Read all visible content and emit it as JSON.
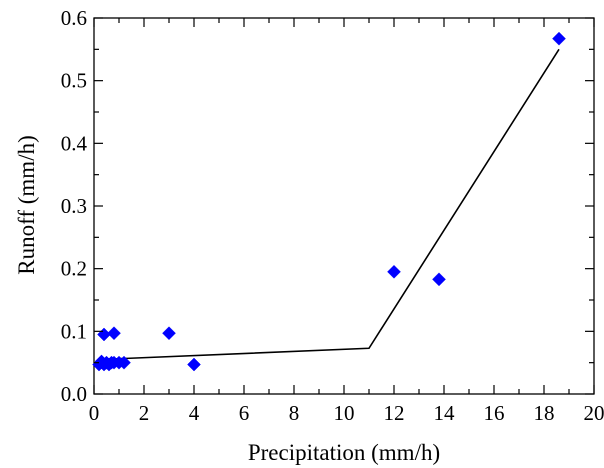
{
  "chart_data": {
    "type": "scatter",
    "title": "",
    "xlabel": "Precipitation (mm/h)",
    "ylabel": "Runoff (mm/h)",
    "xlim": [
      0,
      20
    ],
    "ylim": [
      0.0,
      0.6
    ],
    "x_ticks": [
      "0",
      "2",
      "4",
      "6",
      "8",
      "10",
      "12",
      "14",
      "16",
      "18",
      "20"
    ],
    "x_tick_values": [
      0,
      2,
      4,
      6,
      8,
      10,
      12,
      14,
      16,
      18,
      20
    ],
    "y_ticks": [
      "0.0",
      "0.1",
      "0.2",
      "0.3",
      "0.4",
      "0.5",
      "0.6"
    ],
    "y_tick_values": [
      0.0,
      0.1,
      0.2,
      0.3,
      0.4,
      0.5,
      0.6
    ],
    "grid": false,
    "legend": "none",
    "series": [
      {
        "type": "scatter",
        "marker": "diamond",
        "color": "#0000ff",
        "x": [
          0.2,
          0.3,
          0.4,
          0.5,
          0.6,
          0.7,
          0.8,
          1.0,
          1.2,
          0.4,
          0.8,
          3.0,
          4.0,
          12.0,
          13.8,
          18.6
        ],
        "y": [
          0.047,
          0.052,
          0.047,
          0.05,
          0.047,
          0.05,
          0.05,
          0.05,
          0.05,
          0.095,
          0.097,
          0.097,
          0.047,
          0.195,
          0.183,
          0.567
        ]
      },
      {
        "type": "line",
        "color": "#000000",
        "x": [
          0.2,
          11.0,
          18.6
        ],
        "y": [
          0.055,
          0.073,
          0.55
        ]
      }
    ]
  }
}
